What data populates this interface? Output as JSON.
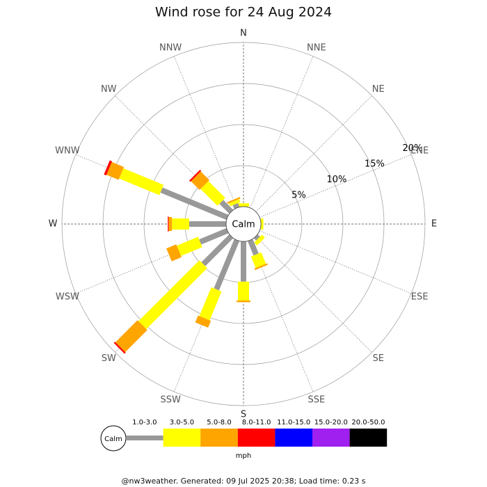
{
  "chart_data": {
    "type": "windrose",
    "title": "Wind rose for 24 Aug 2024",
    "categories": [
      "N",
      "NNE",
      "NE",
      "ENE",
      "E",
      "ESE",
      "SE",
      "SSE",
      "S",
      "SSW",
      "SW",
      "WSW",
      "W",
      "WNW",
      "NW",
      "NNW"
    ],
    "center_label": "Calm",
    "rlim": [
      0,
      20
    ],
    "rticks": [
      {
        "value": 5,
        "label": "5%"
      },
      {
        "value": 10,
        "label": "10%"
      },
      {
        "value": 15,
        "label": "15%"
      },
      {
        "value": 20,
        "label": "20%"
      }
    ],
    "series": [
      {
        "name": "1.0-3.0",
        "color": "#999999",
        "values": [
          0,
          0,
          0,
          0,
          0,
          0,
          0.4,
          1.9,
          4.9,
          6.5,
          4.8,
          3.6,
          4.5,
          8.7,
          1.7,
          0.5
        ]
      },
      {
        "name": "3.0-5.0",
        "color": "#ffff00",
        "values": [
          0.4,
          0,
          0,
          0,
          0.3,
          0,
          0.5,
          1.5,
          2.3,
          3.8,
          10.5,
          2.8,
          2.1,
          5.3,
          2.9,
          0.4
        ]
      },
      {
        "name": "5.0-8.0",
        "color": "#ffa500",
        "values": [
          0,
          0,
          0,
          0,
          0,
          0,
          0,
          0.2,
          0.2,
          0.9,
          3.8,
          1.3,
          0.4,
          1.6,
          1.5,
          0.2
        ]
      },
      {
        "name": "8.0-11.0",
        "color": "#ff0000",
        "values": [
          0,
          0,
          0,
          0,
          0,
          0,
          0,
          0,
          0,
          0,
          0.2,
          0,
          0.1,
          0.3,
          0.2,
          0
        ]
      },
      {
        "name": "11.0-15.0",
        "color": "#0000ff",
        "values": [
          0,
          0,
          0,
          0,
          0,
          0,
          0,
          0,
          0,
          0,
          0,
          0,
          0,
          0,
          0,
          0
        ]
      },
      {
        "name": "15.0-20.0",
        "color": "#a020f0",
        "values": [
          0,
          0,
          0,
          0,
          0,
          0,
          0,
          0,
          0,
          0,
          0,
          0,
          0,
          0,
          0,
          0
        ]
      },
      {
        "name": "20.0-50.0",
        "color": "#000000",
        "values": [
          0,
          0,
          0,
          0,
          0,
          0,
          0,
          0,
          0,
          0,
          0,
          0,
          0,
          0,
          0,
          0
        ]
      }
    ],
    "legend_unit": "mph",
    "footer": "@nw3weather. Generated: 09 Jul 2025 20:38; Load time: 0.23 s"
  }
}
